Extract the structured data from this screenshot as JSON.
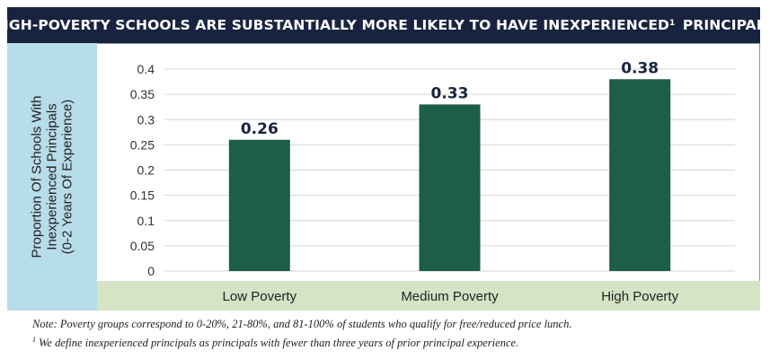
{
  "title": {
    "text_before": "HIGH-POVERTY SCHOOLS ARE SUBSTANTIALLY MORE LIKELY TO HAVE INEXPERIENCED",
    "superscript": "1",
    "text_after": "PRINCIPALS"
  },
  "chart_data": {
    "type": "bar",
    "title": "HIGH-POVERTY SCHOOLS ARE SUBSTANTIALLY MORE LIKELY TO HAVE INEXPERIENCED PRINCIPALS",
    "categories": [
      "Low Poverty",
      "Medium Poverty",
      "High Poverty"
    ],
    "values": [
      0.26,
      0.33,
      0.38
    ],
    "data_labels": [
      "0.26",
      "0.33",
      "0.38"
    ],
    "ylabel_lines": [
      "Proportion Of Schools With",
      "Inexperienced Principals",
      "(0-2 Years Of Experience)"
    ],
    "xlabel": "",
    "ylim": [
      0,
      0.4
    ],
    "yticks": [
      0,
      0.05,
      0.1,
      0.15,
      0.2,
      0.25,
      0.3,
      0.35,
      0.4
    ],
    "ytick_labels": [
      "0",
      "0.05",
      "0.1",
      "0.15",
      "0.2",
      "0.25",
      "0.3",
      "0.35",
      "0.4"
    ],
    "grid": true,
    "colors": {
      "bar": "#1c5e49",
      "grid": "#d6d6d6",
      "ylabel_panel": "#b7dcea",
      "xlabel_strip": "#d4e4c4"
    }
  },
  "notes": {
    "note1": "Note: Poverty groups correspond to 0-20%, 21-80%, and 81-100% of students who qualify for free/reduced price lunch.",
    "footnote_marker": "1",
    "note2": "We define inexperienced principals as principals with fewer than three years of prior principal experience."
  }
}
